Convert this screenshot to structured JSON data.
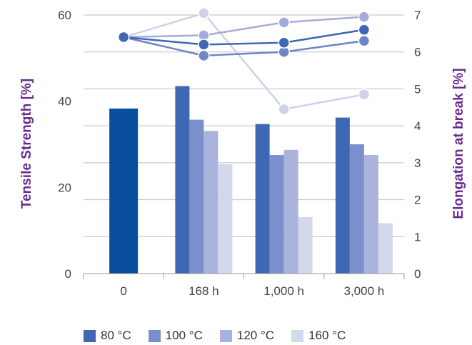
{
  "chart_data": {
    "type": "bar+line",
    "categories": [
      "0",
      "168 h",
      "1,000 h",
      "3,000 h"
    ],
    "y_left": {
      "label": "Tensile Strength  [%]",
      "lim": [
        0,
        60
      ],
      "ticks": [
        "0",
        "20",
        "40",
        "60"
      ]
    },
    "y_right": {
      "label": "Elongation at break [%]",
      "lim": [
        0,
        7
      ],
      "ticks": [
        "0",
        "1",
        "2",
        "3",
        "4",
        "5",
        "6",
        "7"
      ]
    },
    "initial_bar": {
      "category": "0",
      "value": 38.3,
      "color": "#0a4f9e"
    },
    "bar_series": [
      {
        "name": "80 °C",
        "color": "#3e68b3",
        "values": [
          null,
          43.5,
          34.7,
          36.2
        ]
      },
      {
        "name": "100 °C",
        "color": "#7a8fcb",
        "values": [
          null,
          35.7,
          27.5,
          30.0
        ]
      },
      {
        "name": "120 °C",
        "color": "#aab3db",
        "values": [
          null,
          33.1,
          28.7,
          27.5
        ]
      },
      {
        "name": "160 °C",
        "color": "#d4d8ed",
        "values": [
          null,
          25.4,
          13.1,
          11.7
        ]
      }
    ],
    "line_series": [
      {
        "name": "80 °C",
        "color": "#3e68b3",
        "values": [
          6.4,
          6.2,
          6.25,
          6.6
        ]
      },
      {
        "name": "100 °C",
        "color": "#6f86c6",
        "values": [
          6.4,
          5.9,
          6.0,
          6.3
        ]
      },
      {
        "name": "120 °C",
        "color": "#a3acd8",
        "values": [
          6.4,
          6.45,
          6.8,
          6.95
        ]
      },
      {
        "name": "160 °C",
        "color": "#cdd2ea",
        "values": [
          6.4,
          7.05,
          4.45,
          4.85
        ]
      }
    ],
    "grid": true,
    "legend_position": "bottom"
  }
}
